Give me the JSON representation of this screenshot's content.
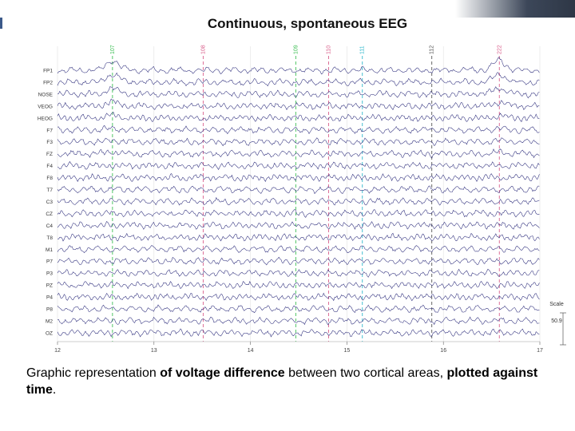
{
  "slide": {
    "title": "Continuous, spontaneous EEG",
    "caption": {
      "part1": "Graphic representation ",
      "bold1": "of voltage difference",
      "part2": " between two cortical areas, ",
      "bold2": "plotted against time",
      "part3": "."
    }
  },
  "chart_data": {
    "type": "line",
    "title": "Continuous, spontaneous EEG",
    "xlabel": "",
    "ylabel": "",
    "xlim": [
      12,
      17
    ],
    "x_ticks": [
      "12",
      "13",
      "14",
      "15",
      "16",
      "17"
    ],
    "channels": [
      "FP1",
      "FP2",
      "NOSE",
      "VEOG",
      "HEOG",
      "F7",
      "F3",
      "FZ",
      "F4",
      "F8",
      "T7",
      "C3",
      "CZ",
      "C4",
      "T8",
      "M1",
      "P7",
      "P3",
      "PZ",
      "P4",
      "P8",
      "M2",
      "OZ"
    ],
    "event_markers": [
      {
        "label": "107",
        "time": 12.57,
        "color": "#3fbf55"
      },
      {
        "label": "108",
        "time": 13.51,
        "color": "#d9608c"
      },
      {
        "label": "109",
        "time": 14.47,
        "color": "#3fbf55"
      },
      {
        "label": "110",
        "time": 14.81,
        "color": "#d9608c"
      },
      {
        "label": "111",
        "time": 15.16,
        "color": "#33b8cc"
      },
      {
        "label": "112",
        "time": 15.88,
        "color": "#555555"
      },
      {
        "label": "222",
        "time": 16.58,
        "color": "#d9608c"
      }
    ],
    "scale": {
      "label": "Scale",
      "value": "50.9"
    },
    "grid": true,
    "line_color": "#2a2a7a"
  }
}
